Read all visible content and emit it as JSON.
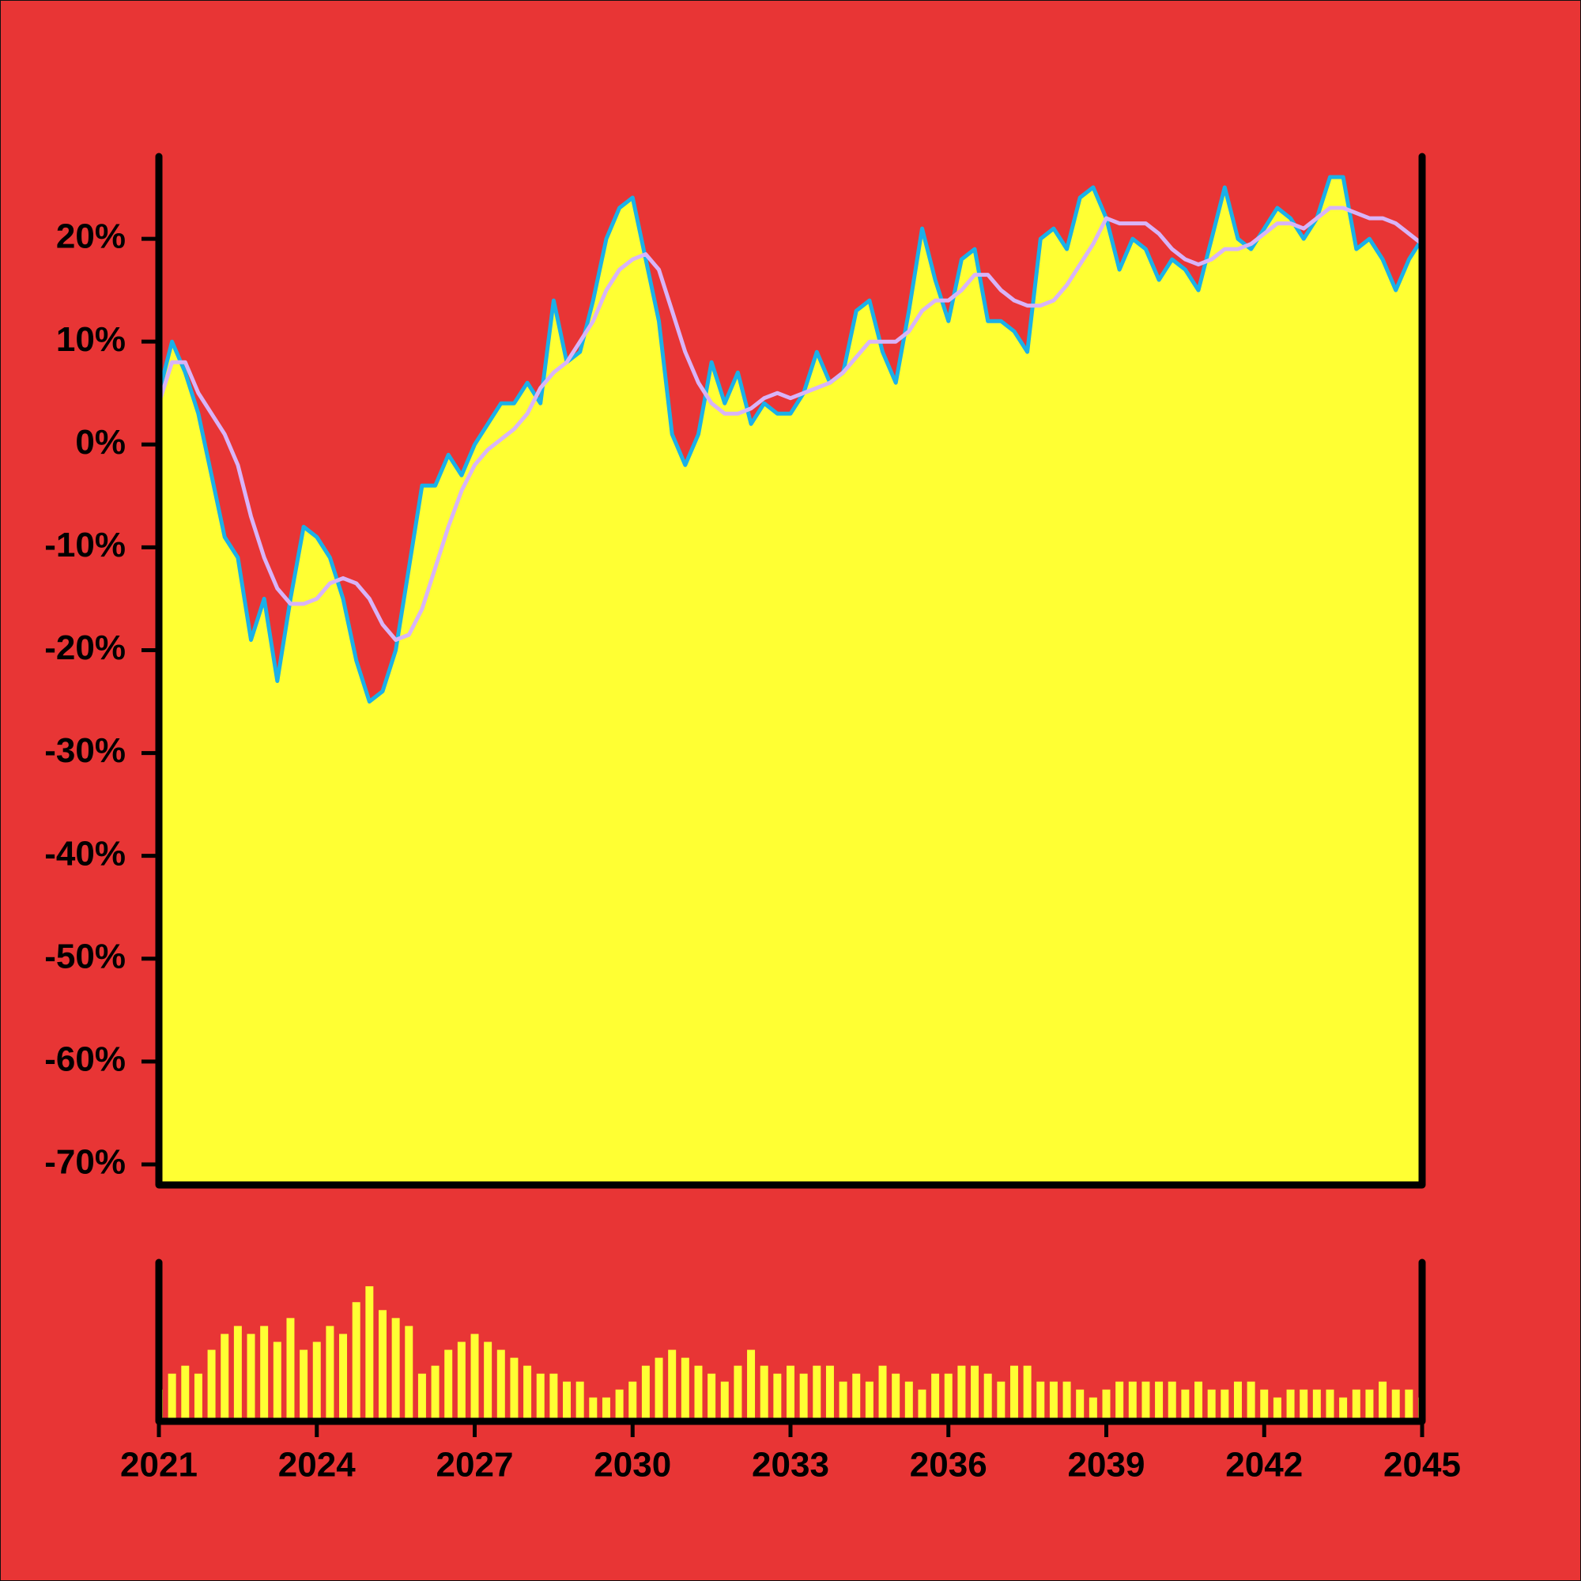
{
  "chart_data": [
    {
      "type": "area",
      "x": [
        2021,
        2021.25,
        2021.5,
        2021.75,
        2022,
        2022.25,
        2022.5,
        2022.75,
        2023,
        2023.25,
        2023.5,
        2023.75,
        2024,
        2024.25,
        2024.5,
        2024.75,
        2025,
        2025.25,
        2025.5,
        2025.75,
        2026,
        2026.25,
        2026.5,
        2026.75,
        2027,
        2027.25,
        2027.5,
        2027.75,
        2028,
        2028.25,
        2028.5,
        2028.75,
        2029,
        2029.25,
        2029.5,
        2029.75,
        2030,
        2030.25,
        2030.5,
        2030.75,
        2031,
        2031.25,
        2031.5,
        2031.75,
        2032,
        2032.25,
        2032.5,
        2032.75,
        2033,
        2033.25,
        2033.5,
        2033.75,
        2034,
        2034.25,
        2034.5,
        2034.75,
        2035,
        2035.25,
        2035.5,
        2035.75,
        2036,
        2036.25,
        2036.5,
        2036.75,
        2037,
        2037.25,
        2037.5,
        2037.75,
        2038,
        2038.25,
        2038.5,
        2038.75,
        2039,
        2039.25,
        2039.5,
        2039.75,
        2040,
        2040.25,
        2040.5,
        2040.75,
        2041,
        2041.25,
        2041.5,
        2041.75,
        2042,
        2042.25,
        2042.5,
        2042.75,
        2043,
        2043.25,
        2043.5,
        2043.75,
        2044,
        2044.25,
        2044.5,
        2044.75,
        2045
      ],
      "series": [
        {
          "type": "area",
          "color": "#ffff33",
          "line_color": "#1ab0e8",
          "values": [
            5,
            10,
            7,
            3,
            -3,
            -9,
            -11,
            -19,
            -15,
            -23,
            -15,
            -8,
            -9,
            -11,
            -15,
            -21,
            -25,
            -24,
            -20,
            -12,
            -4,
            -4,
            -1,
            -3,
            0,
            2,
            4,
            4,
            6,
            4,
            14,
            8,
            9,
            14,
            20,
            23,
            24,
            18,
            12,
            1,
            -2,
            1,
            8,
            4,
            7,
            2,
            4,
            3,
            3,
            5,
            9,
            6,
            7,
            13,
            14,
            9,
            6,
            13,
            21,
            16,
            12,
            18,
            19,
            12,
            12,
            11,
            9,
            20,
            21,
            19,
            24,
            25,
            22,
            17,
            20,
            19,
            16,
            18,
            17,
            15,
            20,
            25,
            20,
            19,
            21,
            23,
            22,
            20,
            22,
            26,
            26,
            19,
            20,
            18,
            15,
            18,
            20
          ]
        },
        {
          "type": "line",
          "color": "#d8b4f8",
          "values": [
            4,
            8,
            8,
            5,
            3,
            1,
            -2,
            -7,
            -11,
            -14,
            -15.5,
            -15.5,
            -15,
            -13.5,
            -13,
            -13.5,
            -15,
            -17.5,
            -19,
            -18.5,
            -16,
            -12,
            -8,
            -4.5,
            -2,
            -0.5,
            0.5,
            1.5,
            3,
            5.5,
            7,
            8,
            10,
            12,
            15,
            17,
            18,
            18.5,
            17,
            13,
            9,
            6,
            4,
            3,
            3,
            3.5,
            4.5,
            5,
            4.5,
            5,
            5.5,
            6,
            7,
            8.5,
            10,
            10,
            10,
            11,
            13,
            14,
            14,
            15,
            16.5,
            16.5,
            15,
            14,
            13.5,
            13.5,
            14,
            15.5,
            17.5,
            19.5,
            22,
            21.5,
            21.5,
            21.5,
            20.5,
            19,
            18,
            17.5,
            18,
            19,
            19,
            19.5,
            20.5,
            21.5,
            21.5,
            21,
            22,
            23,
            23,
            22.5,
            22,
            22,
            21.5,
            20.5,
            19.5
          ]
        }
      ],
      "ylim": [
        -72,
        28
      ],
      "yticks": [
        {
          "value": -70,
          "label": "-70%"
        },
        {
          "value": -60,
          "label": "-60%"
        },
        {
          "value": -50,
          "label": "-50%"
        },
        {
          "value": -40,
          "label": "-40%"
        },
        {
          "value": -30,
          "label": "-30%"
        },
        {
          "value": -20,
          "label": "-20%"
        },
        {
          "value": -10,
          "label": "-10%"
        },
        {
          "value": 0,
          "label": "0%"
        },
        {
          "value": 10,
          "label": "10%"
        },
        {
          "value": 20,
          "label": "20%"
        }
      ],
      "xlim": [
        2021,
        2045
      ]
    },
    {
      "type": "bar",
      "color": "#ffff33",
      "x": [
        2021,
        2021.25,
        2021.5,
        2021.75,
        2022,
        2022.25,
        2022.5,
        2022.75,
        2023,
        2023.25,
        2023.5,
        2023.75,
        2024,
        2024.25,
        2024.5,
        2024.75,
        2025,
        2025.25,
        2025.5,
        2025.75,
        2026,
        2026.25,
        2026.5,
        2026.75,
        2027,
        2027.25,
        2027.5,
        2027.75,
        2028,
        2028.25,
        2028.5,
        2028.75,
        2029,
        2029.25,
        2029.5,
        2029.75,
        2030,
        2030.25,
        2030.5,
        2030.75,
        2031,
        2031.25,
        2031.5,
        2031.75,
        2032,
        2032.25,
        2032.5,
        2032.75,
        2033,
        2033.25,
        2033.5,
        2033.75,
        2034,
        2034.25,
        2034.5,
        2034.75,
        2035,
        2035.25,
        2035.5,
        2035.75,
        2036,
        2036.25,
        2036.5,
        2036.75,
        2037,
        2037.25,
        2037.5,
        2037.75,
        2038,
        2038.25,
        2038.5,
        2038.75,
        2039,
        2039.25,
        2039.5,
        2039.75,
        2040,
        2040.25,
        2040.5,
        2040.75,
        2041,
        2041.25,
        2041.5,
        2041.75,
        2042,
        2042.25,
        2042.5,
        2042.75,
        2043,
        2043.25,
        2043.5,
        2043.75,
        2044,
        2044.25,
        2044.5,
        2044.75,
        2045
      ],
      "values": [
        20,
        30,
        35,
        30,
        45,
        55,
        60,
        55,
        60,
        50,
        65,
        45,
        50,
        60,
        55,
        75,
        85,
        70,
        65,
        60,
        30,
        35,
        45,
        50,
        55,
        50,
        45,
        40,
        35,
        30,
        30,
        25,
        25,
        15,
        15,
        20,
        25,
        35,
        40,
        45,
        40,
        35,
        30,
        25,
        35,
        45,
        35,
        30,
        35,
        30,
        35,
        35,
        25,
        30,
        25,
        35,
        30,
        25,
        20,
        30,
        30,
        35,
        35,
        30,
        25,
        35,
        35,
        25,
        25,
        25,
        20,
        15,
        20,
        25,
        25,
        25,
        25,
        25,
        20,
        25,
        20,
        20,
        25,
        25,
        20,
        15,
        20,
        20,
        20,
        20,
        15,
        20,
        20,
        25,
        20,
        20,
        15
      ],
      "ylim": [
        0,
        100
      ],
      "xlim": [
        2021,
        2045
      ],
      "xticks": [
        2021,
        2024,
        2027,
        2030,
        2033,
        2036,
        2039,
        2042,
        2045
      ]
    }
  ]
}
